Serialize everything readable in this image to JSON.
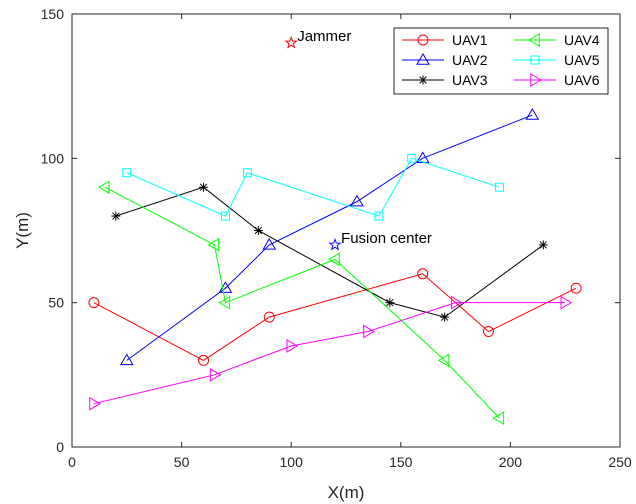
{
  "chart_data": {
    "type": "line",
    "xlabel": "X(m)",
    "ylabel": "Y(m)",
    "xlim": [
      0,
      250
    ],
    "ylim": [
      0,
      150
    ],
    "xticks": [
      0,
      50,
      100,
      150,
      200,
      250
    ],
    "yticks": [
      0,
      50,
      100,
      150
    ],
    "grid": false,
    "legend_position": "top-right",
    "series": [
      {
        "name": "UAV1",
        "color": "#ff0000",
        "marker": "circle",
        "x": [
          10,
          60,
          90,
          160,
          190,
          230
        ],
        "y": [
          50,
          30,
          45,
          60,
          40,
          55
        ]
      },
      {
        "name": "UAV2",
        "color": "#0000ff",
        "marker": "triangle-up",
        "x": [
          25,
          70,
          90,
          130,
          160,
          210
        ],
        "y": [
          30,
          55,
          70,
          85,
          100,
          115
        ]
      },
      {
        "name": "UAV3",
        "color": "#000000",
        "marker": "asterisk",
        "x": [
          20,
          60,
          85,
          145,
          170,
          215
        ],
        "y": [
          80,
          90,
          75,
          50,
          45,
          70
        ]
      },
      {
        "name": "UAV4",
        "color": "#00ff00",
        "marker": "triangle-left",
        "x": [
          15,
          65,
          70,
          120,
          170,
          195
        ],
        "y": [
          90,
          70,
          50,
          65,
          30,
          10
        ]
      },
      {
        "name": "UAV5",
        "color": "#00ffff",
        "marker": "square",
        "x": [
          25,
          70,
          80,
          140,
          155,
          195
        ],
        "y": [
          95,
          80,
          95,
          80,
          100,
          90
        ]
      },
      {
        "name": "UAV6",
        "color": "#ff00ff",
        "marker": "triangle-right",
        "x": [
          10,
          65,
          100,
          135,
          175,
          225
        ],
        "y": [
          15,
          25,
          35,
          40,
          50,
          50
        ]
      }
    ],
    "annotations": [
      {
        "label": "Jammer",
        "x": 100,
        "y": 140,
        "color": "#ff0000",
        "marker": "star"
      },
      {
        "label": "Fusion center",
        "x": 120,
        "y": 70,
        "color": "#0000ff",
        "marker": "star"
      }
    ]
  }
}
